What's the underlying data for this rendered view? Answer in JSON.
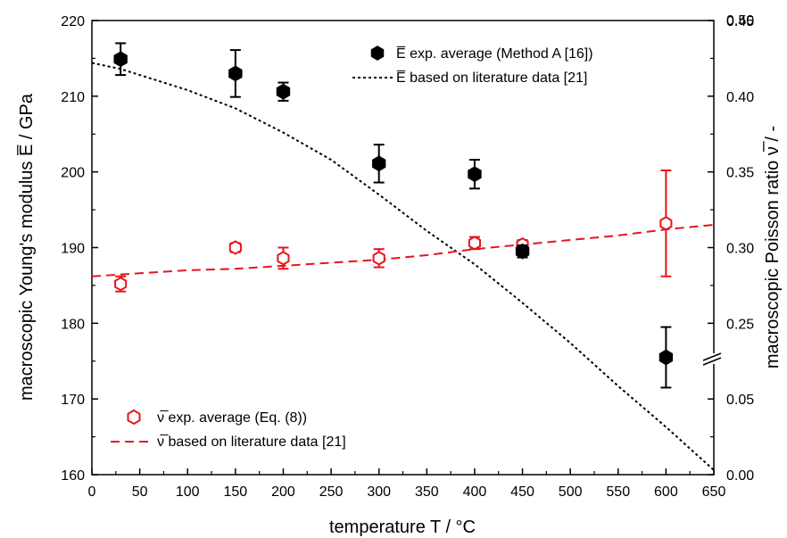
{
  "chart_data": {
    "type": "scatter",
    "xlabel": "temperature T / °C",
    "ylabel_left": "macroscopic Young's modulus E̅ / GPa",
    "ylabel_right": "macroscopic Poisson ratio ν̅ / -",
    "xlim": [
      0,
      650
    ],
    "x_ticks": [
      0,
      50,
      100,
      150,
      200,
      250,
      300,
      350,
      400,
      450,
      500,
      550,
      600,
      650
    ],
    "ylim_left": [
      160,
      220
    ],
    "y_ticks_left": [
      160,
      170,
      180,
      190,
      200,
      210,
      220
    ],
    "y_ticks_right": [
      {
        "label": "0.00",
        "left_equiv": 160
      },
      {
        "label": "0.05",
        "left_equiv": 170
      },
      {
        "label": "0.25",
        "left_equiv": 180
      },
      {
        "label": "0.30",
        "left_equiv": 190
      },
      {
        "label": "0.35",
        "left_equiv": 200
      },
      {
        "label": "0.40",
        "left_equiv": 210
      },
      {
        "label": "0.45",
        "left_equiv": 220
      },
      {
        "label": "0.50",
        "left_equiv": 230
      }
    ],
    "right_axis_break_at": 176,
    "legend_top": [
      {
        "label": "E̅ exp. average (Method A [16])",
        "marker": "filled-hexagon",
        "color": "#000000"
      },
      {
        "label": "E̅ based on literature data [21]",
        "line": "dotted",
        "color": "#000000"
      }
    ],
    "legend_bottom": [
      {
        "label": "ν̅ exp. average (Eq. (8))",
        "marker": "open-hexagon",
        "color": "#e8141b"
      },
      {
        "label": "ν̅ based on literature data [21]",
        "line": "dashed",
        "color": "#e8141b"
      }
    ],
    "series": [
      {
        "name": "E̅ exp. average (Method A [16])",
        "axis": "left",
        "color": "#000000",
        "points": [
          {
            "x": 30,
            "y": 214.9,
            "err": 2.1
          },
          {
            "x": 150,
            "y": 213.0,
            "err": 3.1
          },
          {
            "x": 200,
            "y": 210.6,
            "err": 1.2
          },
          {
            "x": 300,
            "y": 201.1,
            "err": 2.5
          },
          {
            "x": 400,
            "y": 199.7,
            "err": 1.9
          },
          {
            "x": 450,
            "y": 189.5,
            "err": 0.8
          },
          {
            "x": 600,
            "y": 175.5,
            "err": 4.0
          }
        ]
      },
      {
        "name": "E̅ based on literature data [21]",
        "axis": "left",
        "color": "#000000",
        "curve": [
          [
            0,
            214.4
          ],
          [
            30,
            213.6
          ],
          [
            100,
            210.8
          ],
          [
            150,
            208.4
          ],
          [
            200,
            205.2
          ],
          [
            250,
            201.6
          ],
          [
            300,
            197.0
          ],
          [
            350,
            192.2
          ],
          [
            400,
            187.8
          ],
          [
            450,
            182.7
          ],
          [
            500,
            177.4
          ],
          [
            550,
            171.7
          ],
          [
            600,
            166.3
          ],
          [
            650,
            160.6
          ]
        ]
      },
      {
        "name": "ν̅ exp. average (Eq. (8))",
        "axis": "right",
        "color": "#e8141b",
        "points": [
          {
            "x": 30,
            "y": 0.276,
            "err": 0.005
          },
          {
            "x": 150,
            "y": 0.3,
            "err": 0.003
          },
          {
            "x": 200,
            "y": 0.293,
            "err": 0.007
          },
          {
            "x": 300,
            "y": 0.293,
            "err": 0.006
          },
          {
            "x": 400,
            "y": 0.303,
            "err": 0.004
          },
          {
            "x": 450,
            "y": 0.302,
            "err": 0.003
          },
          {
            "x": 600,
            "y": 0.316,
            "err": 0.035
          }
        ]
      },
      {
        "name": "ν̅ based on literature data [21]",
        "axis": "right",
        "color": "#e8141b",
        "curve": [
          [
            0,
            0.281
          ],
          [
            50,
            0.283
          ],
          [
            100,
            0.285
          ],
          [
            150,
            0.286
          ],
          [
            200,
            0.288
          ],
          [
            250,
            0.29
          ],
          [
            300,
            0.292
          ],
          [
            350,
            0.295
          ],
          [
            400,
            0.299
          ],
          [
            450,
            0.302
          ],
          [
            500,
            0.305
          ],
          [
            550,
            0.308
          ],
          [
            600,
            0.312
          ],
          [
            650,
            0.315
          ]
        ]
      }
    ]
  }
}
